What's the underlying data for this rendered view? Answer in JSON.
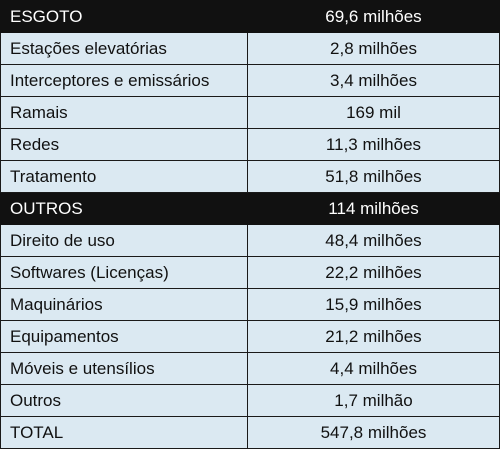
{
  "rows": [
    {
      "label": "ESGOTO",
      "value": "69,6 milhões",
      "section": true
    },
    {
      "label": "Estações elevatórias",
      "value": "2,8 milhões"
    },
    {
      "label": "Interceptores e emissários",
      "value": "3,4 milhões"
    },
    {
      "label": "Ramais",
      "value": "169 mil"
    },
    {
      "label": "Redes",
      "value": "11,3 milhões"
    },
    {
      "label": "Tratamento",
      "value": "51,8 milhões"
    },
    {
      "label": "OUTROS",
      "value": "114 milhões",
      "section": true
    },
    {
      "label": "Direito de uso",
      "value": "48,4 milhões"
    },
    {
      "label": "Softwares (Licenças)",
      "value": "22,2 milhões"
    },
    {
      "label": "Maquinários",
      "value": "15,9 milhões"
    },
    {
      "label": "Equipamentos",
      "value": "21,2 milhões"
    },
    {
      "label": "Móveis e utensílios",
      "value": "4,4 milhões"
    },
    {
      "label": "Outros",
      "value": "1,7 milhão"
    },
    {
      "label": "TOTAL",
      "value": "547,8 milhões"
    }
  ]
}
